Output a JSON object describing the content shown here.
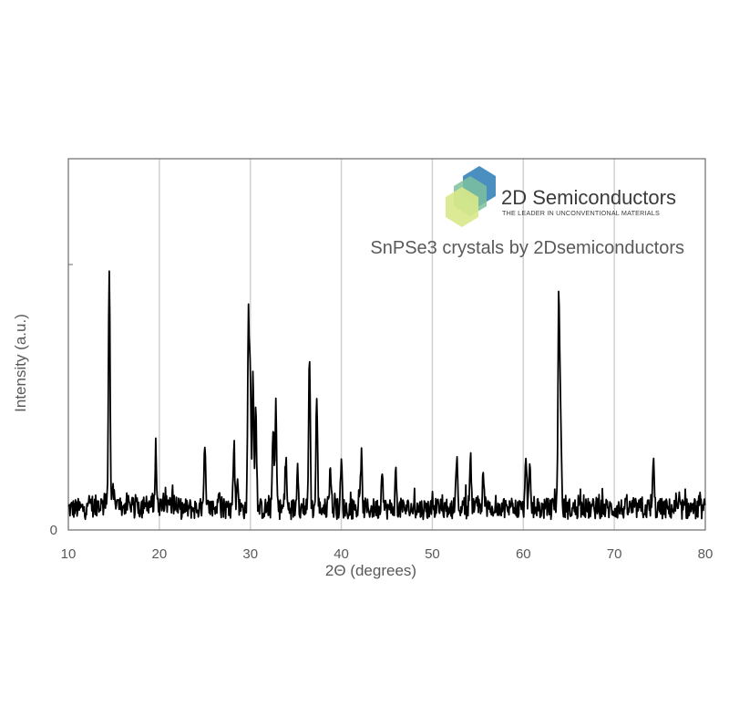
{
  "chart_data": {
    "type": "line",
    "title": "",
    "xlabel": "2Θ (degrees)",
    "ylabel": "Intensity (a.u.)",
    "xlim": [
      10,
      80
    ],
    "ylim": [
      0,
      100
    ],
    "x_ticks": [
      "10",
      "20",
      "30",
      "40",
      "50",
      "60",
      "70",
      "80"
    ],
    "y_ticks": [
      "0"
    ],
    "grid": "vertical",
    "annotation": "SnPSe3 crystals by 2Dsemiconductors",
    "series": [
      {
        "color": "#000000",
        "baseline": 8,
        "noise": 4,
        "x": [
          14.0,
          14.5,
          14.9,
          19.6,
          25.0,
          26.6,
          28.2,
          28.6,
          29.8,
          30.0,
          30.3,
          30.6,
          32.5,
          32.8,
          33.9,
          35.2,
          36.5,
          37.3,
          38.8,
          40.0,
          42.2,
          44.5,
          46.0,
          52.7,
          54.2,
          55.6,
          60.3,
          60.7,
          63.9,
          64.1,
          74.3
        ],
        "values": [
          12,
          100,
          14,
          29,
          30,
          18,
          33,
          20,
          80,
          58,
          60,
          45,
          39,
          45,
          27,
          26,
          68,
          50,
          25,
          25,
          28,
          25,
          20,
          28,
          29,
          21,
          29,
          22,
          90,
          45,
          25
        ]
      }
    ]
  },
  "logo": {
    "name": "2D Semiconductors",
    "tagline": "THE LEADER IN UNCONVENTIONAL MATERIALS",
    "colors": [
      "#4a8fbf",
      "#7cbf9e",
      "#d8e88a"
    ]
  }
}
